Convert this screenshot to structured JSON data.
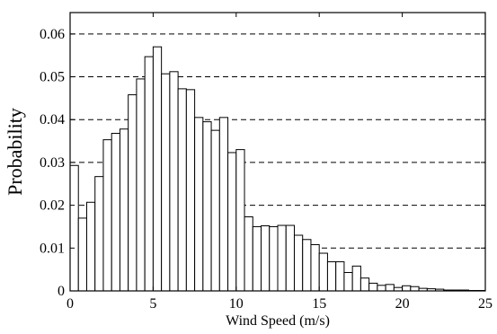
{
  "chart_data": {
    "type": "bar",
    "title": "",
    "xlabel": "Wind Speed (m/s)",
    "ylabel": "Probability",
    "xlim": [
      0,
      25
    ],
    "ylim": [
      0,
      0.065
    ],
    "bin_width": 0.5,
    "bin_start": 0,
    "x_ticks": [
      0,
      5,
      10,
      15,
      20,
      25
    ],
    "y_ticks": [
      0,
      0.01,
      0.02,
      0.03,
      0.04,
      0.05,
      0.06
    ],
    "x_tick_labels": [
      "0",
      "5",
      "10",
      "15",
      "20",
      "25"
    ],
    "y_tick_labels": [
      "0",
      "0.01",
      "0.02",
      "0.03",
      "0.04",
      "0.05",
      "0.06"
    ],
    "grid": "horizontal-dashed",
    "bar_color": "#ffffff",
    "edge_color": "#000000",
    "values": [
      0.0293,
      0.017,
      0.0207,
      0.0267,
      0.0353,
      0.0368,
      0.0378,
      0.0458,
      0.0495,
      0.0547,
      0.057,
      0.0507,
      0.0512,
      0.0472,
      0.047,
      0.0405,
      0.0395,
      0.0375,
      0.0405,
      0.0323,
      0.033,
      0.0173,
      0.015,
      0.0152,
      0.015,
      0.0153,
      0.0153,
      0.013,
      0.012,
      0.0108,
      0.0088,
      0.0068,
      0.0068,
      0.0043,
      0.0058,
      0.003,
      0.0018,
      0.0013,
      0.0015,
      0.0008,
      0.0012,
      0.001,
      0.0006,
      0.0005,
      0.0004,
      0.0002,
      0.0002,
      0.0002,
      0.0001,
      0.0001
    ]
  }
}
